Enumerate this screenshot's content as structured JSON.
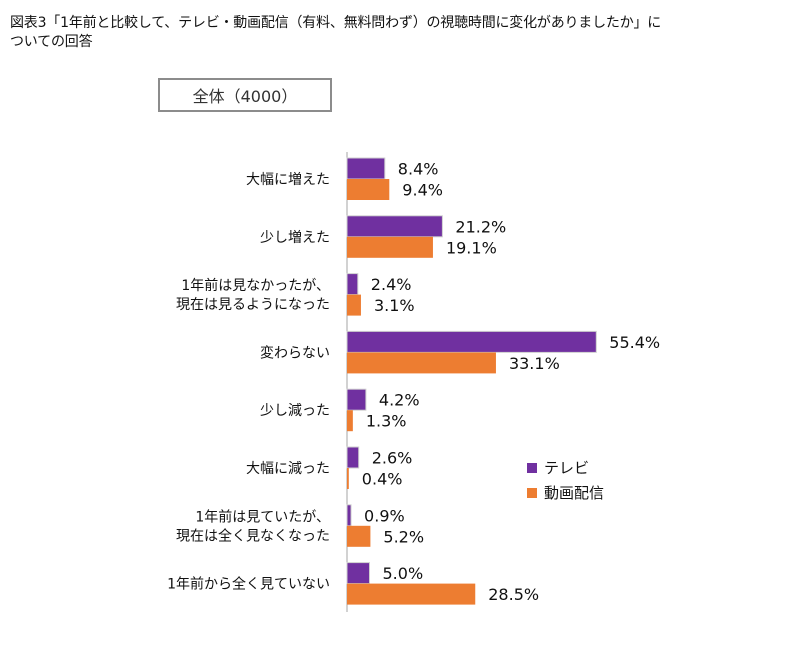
{
  "title": {
    "line1": "図表3「1年前と比較して、テレビ・動画配信（有料、無料問わず）の視聴時間に変化がありましたか」に",
    "line2": "ついての回答"
  },
  "subset_label": "全体（4000）",
  "colors": {
    "tv": "#7030A0",
    "video": "#ED7D31",
    "axis": "#a6a6a6"
  },
  "chart_data": {
    "type": "bar",
    "orientation": "horizontal",
    "categories": [
      [
        "大幅に増えた"
      ],
      [
        "少し増えた"
      ],
      [
        "1年前は見なかったが、",
        "現在は見るようになった"
      ],
      [
        "変わらない"
      ],
      [
        "少し減った"
      ],
      [
        "大幅に減った"
      ],
      [
        "1年前は見ていたが、",
        "現在は全く見なくなった"
      ],
      [
        "1年前から全く見ていない"
      ]
    ],
    "series": [
      {
        "name": "テレビ",
        "values": [
          8.4,
          21.2,
          2.4,
          55.4,
          4.2,
          2.6,
          0.9,
          5.0
        ],
        "labels": [
          "8.4%",
          "21.2%",
          "2.4%",
          "55.4%",
          "4.2%",
          "2.6%",
          "0.9%",
          "5.0%"
        ]
      },
      {
        "name": "動画配信",
        "values": [
          9.4,
          19.1,
          3.1,
          33.1,
          1.3,
          0.4,
          5.2,
          28.5
        ],
        "labels": [
          "9.4%",
          "19.1%",
          "3.1%",
          "33.1%",
          "1.3%",
          "0.4%",
          "5.2%",
          "28.5%"
        ]
      }
    ],
    "xlim": [
      0,
      60
    ],
    "legend_position": "right"
  }
}
